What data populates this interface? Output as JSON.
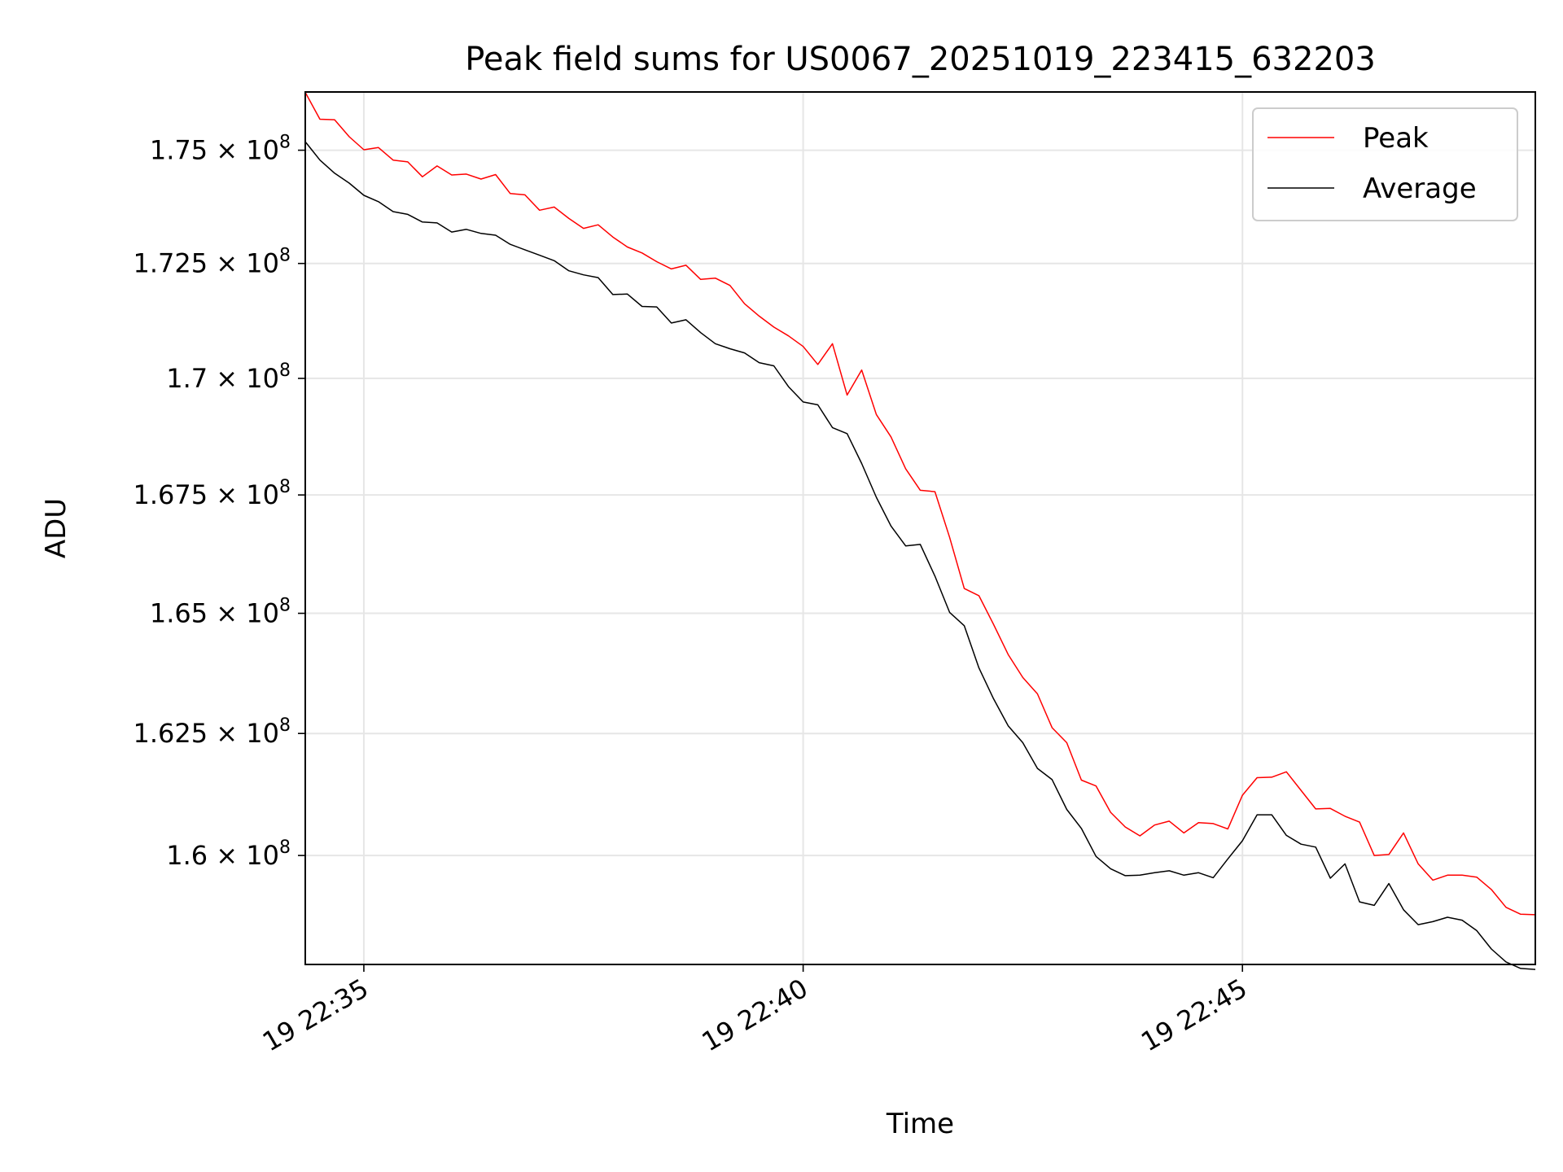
{
  "chart_data": {
    "type": "line",
    "title": "Peak field sums for US0067_20251019_223415_632203",
    "xlabel": "Time",
    "ylabel": "ADU",
    "x_range": [
      "19 22:34:20",
      "19 22:48:20"
    ],
    "ylim": [
      157800000,
      176300000
    ],
    "y_scale": "log",
    "grid": true,
    "legend_position": "top-right",
    "x_ticks": [
      {
        "t": "19 22:35:00",
        "label": "19 22:35"
      },
      {
        "t": "19 22:40:00",
        "label": "19 22:40"
      },
      {
        "t": "19 22:45:00",
        "label": "19 22:45"
      }
    ],
    "y_ticks": [
      {
        "value": 160000000,
        "mantissa": "1.6",
        "exponent": "8"
      },
      {
        "value": 162500000,
        "mantissa": "1.625",
        "exponent": "8"
      },
      {
        "value": 165000000,
        "mantissa": "1.65",
        "exponent": "8"
      },
      {
        "value": 167500000,
        "mantissa": "1.675",
        "exponent": "8"
      },
      {
        "value": 170000000,
        "mantissa": "1.7",
        "exponent": "8"
      },
      {
        "value": 172500000,
        "mantissa": "1.725",
        "exponent": "8"
      },
      {
        "value": 175000000,
        "mantissa": "1.75",
        "exponent": "8"
      }
    ],
    "times": [
      "19 22:34:20",
      "19 22:34:30",
      "19 22:34:40",
      "19 22:34:50",
      "19 22:35:00",
      "19 22:35:10",
      "19 22:35:20",
      "19 22:35:30",
      "19 22:35:40",
      "19 22:35:50",
      "19 22:36:00",
      "19 22:36:10",
      "19 22:36:20",
      "19 22:36:30",
      "19 22:36:40",
      "19 22:36:50",
      "19 22:37:00",
      "19 22:37:10",
      "19 22:37:20",
      "19 22:37:30",
      "19 22:37:40",
      "19 22:37:50",
      "19 22:38:00",
      "19 22:38:10",
      "19 22:38:20",
      "19 22:38:30",
      "19 22:38:40",
      "19 22:38:50",
      "19 22:39:00",
      "19 22:39:10",
      "19 22:39:20",
      "19 22:39:30",
      "19 22:39:40",
      "19 22:39:50",
      "19 22:40:00",
      "19 22:40:10",
      "19 22:40:20",
      "19 22:40:30",
      "19 22:40:40",
      "19 22:40:50",
      "19 22:41:00",
      "19 22:41:10",
      "19 22:41:20",
      "19 22:41:30",
      "19 22:41:40",
      "19 22:41:50",
      "19 22:42:00",
      "19 22:42:10",
      "19 22:42:20",
      "19 22:42:30",
      "19 22:42:40",
      "19 22:42:50",
      "19 22:43:00",
      "19 22:43:10",
      "19 22:43:20",
      "19 22:43:30",
      "19 22:43:40",
      "19 22:43:50",
      "19 22:44:00",
      "19 22:44:10",
      "19 22:44:20",
      "19 22:44:30",
      "19 22:44:40",
      "19 22:44:50",
      "19 22:45:00",
      "19 22:45:10",
      "19 22:45:20",
      "19 22:45:30",
      "19 22:45:40",
      "19 22:45:50",
      "19 22:46:00",
      "19 22:46:10",
      "19 22:46:20",
      "19 22:46:30",
      "19 22:46:40",
      "19 22:46:50",
      "19 22:47:00",
      "19 22:47:10",
      "19 22:47:20",
      "19 22:47:30",
      "19 22:47:40",
      "19 22:47:50",
      "19 22:48:00",
      "19 22:48:10",
      "19 22:48:20"
    ],
    "series": [
      {
        "name": "Peak",
        "color": "#ff0000",
        "values": [
          176290000,
          175690000,
          175680000,
          175300000,
          175010000,
          175060000,
          174780000,
          174740000,
          174410000,
          174650000,
          174450000,
          174470000,
          174360000,
          174460000,
          174040000,
          174010000,
          173670000,
          173740000,
          173490000,
          173270000,
          173350000,
          173080000,
          172860000,
          172730000,
          172540000,
          172380000,
          172460000,
          172150000,
          172180000,
          172020000,
          171620000,
          171350000,
          171110000,
          170920000,
          170690000,
          170300000,
          170750000,
          169640000,
          170180000,
          169220000,
          168740000,
          168060000,
          167600000,
          167570000,
          166600000,
          165520000,
          165370000,
          164770000,
          164140000,
          163660000,
          163320000,
          162620000,
          162310000,
          161540000,
          161420000,
          160880000,
          160580000,
          160400000,
          160620000,
          160700000,
          160460000,
          160670000,
          160650000,
          160540000,
          161230000,
          161590000,
          161600000,
          161710000,
          161330000,
          160950000,
          160960000,
          160800000,
          160680000,
          160000000,
          160020000,
          160460000,
          159830000,
          159500000,
          159600000,
          159600000,
          159560000,
          159310000,
          158950000,
          158810000,
          158800000
        ]
      },
      {
        "name": "Average",
        "color": "#000000",
        "values": [
          175190000,
          174780000,
          174490000,
          174270000,
          174000000,
          173860000,
          173640000,
          173580000,
          173410000,
          173390000,
          173190000,
          173250000,
          173160000,
          173120000,
          172920000,
          172800000,
          172680000,
          172560000,
          172340000,
          172250000,
          172190000,
          171820000,
          171830000,
          171560000,
          171550000,
          171200000,
          171270000,
          170990000,
          170750000,
          170640000,
          170550000,
          170340000,
          170270000,
          169820000,
          169490000,
          169430000,
          168940000,
          168810000,
          168170000,
          167450000,
          166840000,
          166420000,
          166450000,
          165780000,
          165020000,
          164740000,
          163860000,
          163220000,
          162660000,
          162310000,
          161780000,
          161550000,
          160940000,
          160550000,
          159980000,
          159730000,
          159590000,
          159600000,
          159650000,
          159690000,
          159600000,
          159650000,
          159550000,
          159930000,
          160300000,
          160830000,
          160830000,
          160410000,
          160230000,
          160170000,
          159540000,
          159830000,
          159060000,
          158990000,
          159430000,
          158900000,
          158600000,
          158660000,
          158750000,
          158690000,
          158480000,
          158110000,
          157850000,
          157720000,
          157700000
        ]
      }
    ]
  }
}
